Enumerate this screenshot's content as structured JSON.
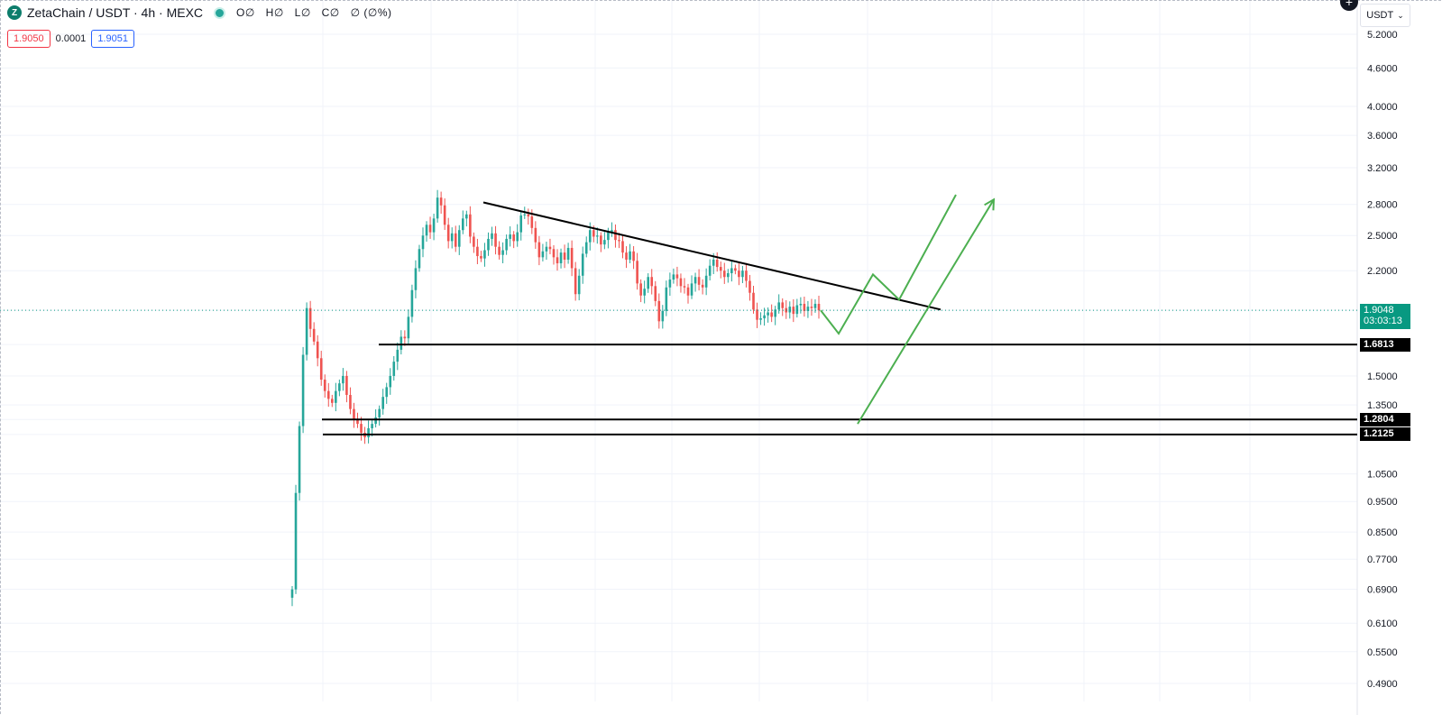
{
  "header": {
    "symbol_text": "ZetaChain / USDT · 4h · MEXC",
    "ohlc": [
      "O∅",
      "H∅",
      "L∅",
      "C∅",
      "∅ (∅%)"
    ],
    "bid": "1.9050",
    "spread": "0.0001",
    "ask": "1.9051",
    "currency": "USDT",
    "logo_letter": "Z"
  },
  "colors": {
    "up": "#26a69a",
    "down": "#ef5350",
    "line": "#000000",
    "projection": "#4caf50",
    "current": "#089981"
  },
  "chart_data": {
    "type": "candlestick",
    "y_scale": "log",
    "ylim": [
      0.47,
      5.5
    ],
    "y_ticks": [
      "5.2000",
      "4.6000",
      "4.0000",
      "3.6000",
      "3.2000",
      "2.8000",
      "2.5000",
      "2.2000",
      "1.5000",
      "1.3500",
      "1.0500",
      "0.9500",
      "0.8500",
      "0.7700",
      "0.6900",
      "0.6100",
      "0.5500",
      "0.4900"
    ],
    "last_price": {
      "value": "1.9048",
      "countdown": "03:03:13"
    },
    "horizontal_levels": [
      "1.6813",
      "1.2804",
      "1.2125"
    ],
    "trendline": {
      "start_price": 2.82,
      "end_price": 1.91
    },
    "closes": [
      0.69,
      0.98,
      1.25,
      1.62,
      1.92,
      1.78,
      1.7,
      1.6,
      1.48,
      1.42,
      1.38,
      1.36,
      1.42,
      1.46,
      1.5,
      1.4,
      1.33,
      1.28,
      1.26,
      1.22,
      1.2,
      1.24,
      1.26,
      1.29,
      1.33,
      1.39,
      1.44,
      1.5,
      1.58,
      1.65,
      1.73,
      1.72,
      1.86,
      2.05,
      2.22,
      2.38,
      2.5,
      2.6,
      2.53,
      2.66,
      2.87,
      2.79,
      2.6,
      2.45,
      2.52,
      2.4,
      2.55,
      2.66,
      2.7,
      2.49,
      2.4,
      2.32,
      2.3,
      2.37,
      2.47,
      2.52,
      2.4,
      2.33,
      2.37,
      2.47,
      2.51,
      2.45,
      2.53,
      2.69,
      2.7,
      2.68,
      2.57,
      2.44,
      2.31,
      2.36,
      2.4,
      2.38,
      2.31,
      2.26,
      2.35,
      2.29,
      2.39,
      2.22,
      2.02,
      2.16,
      2.34,
      2.44,
      2.55,
      2.49,
      2.5,
      2.42,
      2.46,
      2.53,
      2.55,
      2.46,
      2.45,
      2.35,
      2.29,
      2.36,
      2.28,
      2.1,
      2.01,
      2.06,
      2.15,
      2.08,
      1.97,
      1.83,
      1.9,
      2.07,
      2.13,
      2.17,
      2.14,
      2.08,
      2.07,
      2.01,
      2.1,
      2.15,
      2.09,
      2.07,
      2.16,
      2.24,
      2.29,
      2.23,
      2.2,
      2.15,
      2.18,
      2.22,
      2.2,
      2.15,
      2.2,
      2.12,
      2.03,
      1.91,
      1.84,
      1.85,
      1.87,
      1.89,
      1.86,
      1.91,
      1.96,
      1.92,
      1.89,
      1.93,
      1.88,
      1.94,
      1.95,
      1.9,
      1.93,
      1.92,
      1.95,
      1.905
    ],
    "projection": {
      "zigzag": [
        1.905,
        1.75,
        2.17,
        1.98,
        2.9
      ],
      "arrow": [
        1.26,
        2.85
      ]
    }
  }
}
